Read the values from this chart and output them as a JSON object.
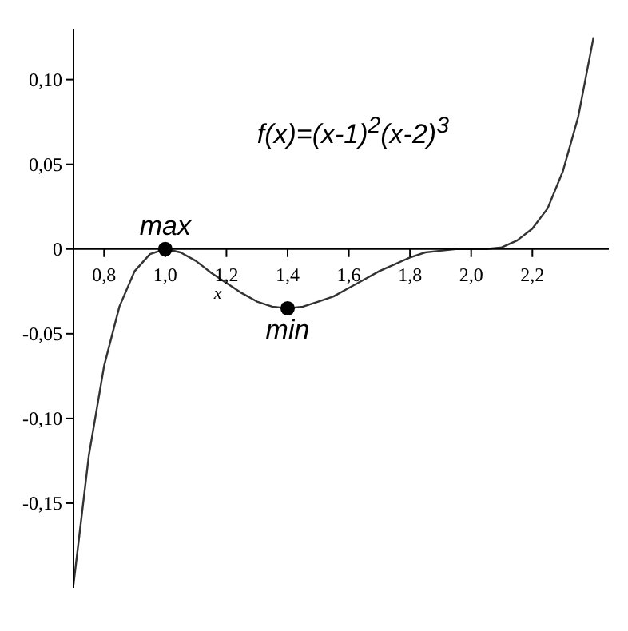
{
  "chart_data": {
    "type": "line",
    "xlabel": "x",
    "annotations": [
      "f(x)=(x-1)$^{2}$(x-2)$^{3}$",
      {
        "text": "max",
        "x": 1,
        "y": 0
      },
      {
        "text": "min",
        "x": 1.4,
        "y": -0.035
      }
    ],
    "series": [
      {
        "color": "#333333",
        "marker": "none",
        "x": [
          0.7,
          0.75,
          0.8,
          0.85,
          0.9,
          0.95,
          1.0,
          1.05,
          1.1,
          1.15,
          1.2,
          1.25,
          1.3,
          1.35,
          1.4,
          1.45,
          1.5,
          1.55,
          1.6,
          1.65,
          1.7,
          1.75,
          1.8,
          1.85,
          1.9,
          1.95,
          2.0,
          2.05,
          2.1,
          2.15,
          2.2,
          2.25,
          2.3,
          2.35,
          2.4
        ],
        "values": [
          -0.198,
          -0.122,
          -0.069,
          -0.034,
          -0.013,
          -0.003,
          0,
          -0.002,
          -0.007,
          -0.014,
          -0.02,
          -0.026,
          -0.031,
          -0.034,
          -0.035,
          -0.034,
          -0.031,
          -0.028,
          -0.023,
          -0.018,
          -0.013,
          -0.009,
          -0.005,
          -0.002,
          -0.001,
          0,
          0,
          0,
          0.001,
          0.005,
          0.012,
          0.024,
          0.046,
          0.078,
          0.125
        ]
      },
      {
        "type": "scatter",
        "color": "#000000",
        "marker": "circle",
        "x": [
          1,
          1.4
        ],
        "values": [
          0,
          -0.035
        ]
      }
    ],
    "xlim": [
      0.7,
      2.45
    ],
    "ylim": [
      -0.2,
      0.13
    ],
    "xticks": [
      {
        "value": 0.8,
        "label": "0,8"
      },
      {
        "value": 1.0,
        "label": "1,0"
      },
      {
        "value": 1.2,
        "label": "1,2"
      },
      {
        "value": 1.4,
        "label": "1,4"
      },
      {
        "value": 1.6,
        "label": "1,6"
      },
      {
        "value": 1.8,
        "label": "1,8"
      },
      {
        "value": 2.0,
        "label": "2,0"
      },
      {
        "value": 2.2,
        "label": "2,2"
      }
    ],
    "yticks": [
      {
        "value": 0.1,
        "label": "0,10"
      },
      {
        "value": 0.05,
        "label": "0,05"
      },
      0,
      {
        "value": -0.05,
        "label": "-0,05"
      },
      {
        "value": -0.1,
        "label": "-0,10"
      },
      {
        "value": -0.15,
        "label": "-0,15"
      }
    ]
  }
}
